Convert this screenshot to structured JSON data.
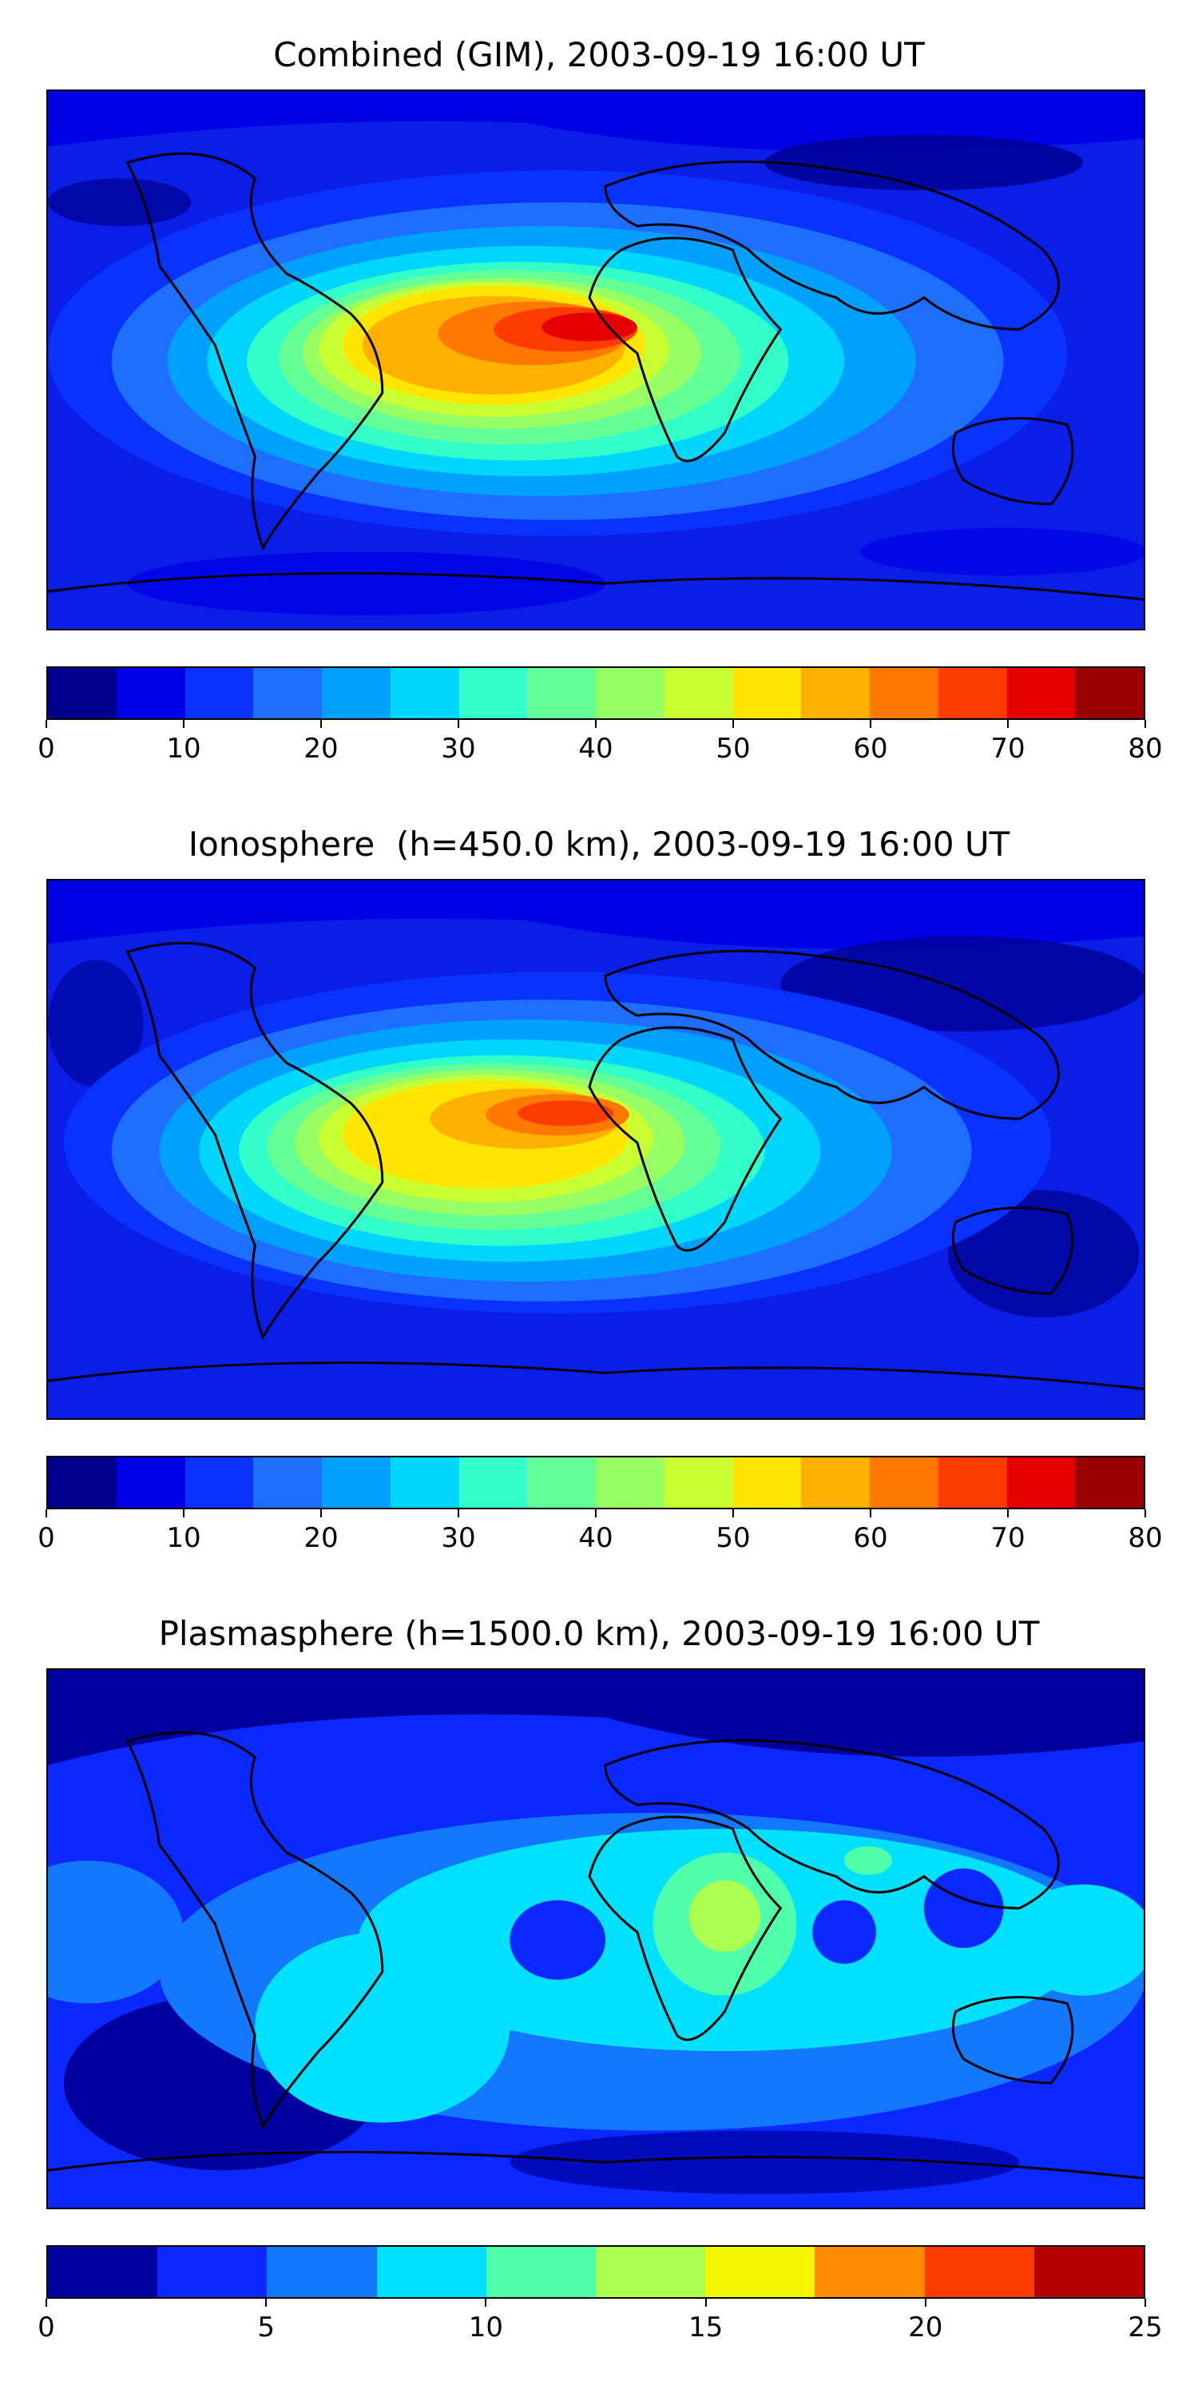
{
  "panels": [
    {
      "title": "Combined (GIM), 2003-09-19 16:00 UT",
      "colorbar": {
        "colors": [
          "#00008f",
          "#0000e6",
          "#0a32ff",
          "#1e6eff",
          "#00a0ff",
          "#00d7ff",
          "#32ffc8",
          "#64ff96",
          "#96ff64",
          "#c8ff32",
          "#ffe600",
          "#ffb000",
          "#ff7800",
          "#ff3c00",
          "#e60000",
          "#9b0000"
        ],
        "ticks": [
          "0",
          "10",
          "20",
          "30",
          "40",
          "50",
          "60",
          "70",
          "80"
        ]
      }
    },
    {
      "title": "Ionosphere  (h=450.0 km), 2003-09-19 16:00 UT",
      "colorbar": {
        "colors": [
          "#00008f",
          "#0000e6",
          "#0a32ff",
          "#1e6eff",
          "#00a0ff",
          "#00d7ff",
          "#32ffc8",
          "#64ff96",
          "#96ff64",
          "#c8ff32",
          "#ffe600",
          "#ffb000",
          "#ff7800",
          "#ff3c00",
          "#e60000",
          "#9b0000"
        ],
        "ticks": [
          "0",
          "10",
          "20",
          "30",
          "40",
          "50",
          "60",
          "70",
          "80"
        ]
      }
    },
    {
      "title": "Plasmasphere (h=1500.0 km), 2003-09-19 16:00 UT",
      "colorbar": {
        "colors": [
          "#00009f",
          "#0a28ff",
          "#1478ff",
          "#00e0ff",
          "#50ffaa",
          "#aaff50",
          "#f5f500",
          "#ff8c00",
          "#ff3c00",
          "#b40000"
        ],
        "ticks": [
          "0",
          "5",
          "10",
          "15",
          "20",
          "25"
        ]
      }
    }
  ]
}
